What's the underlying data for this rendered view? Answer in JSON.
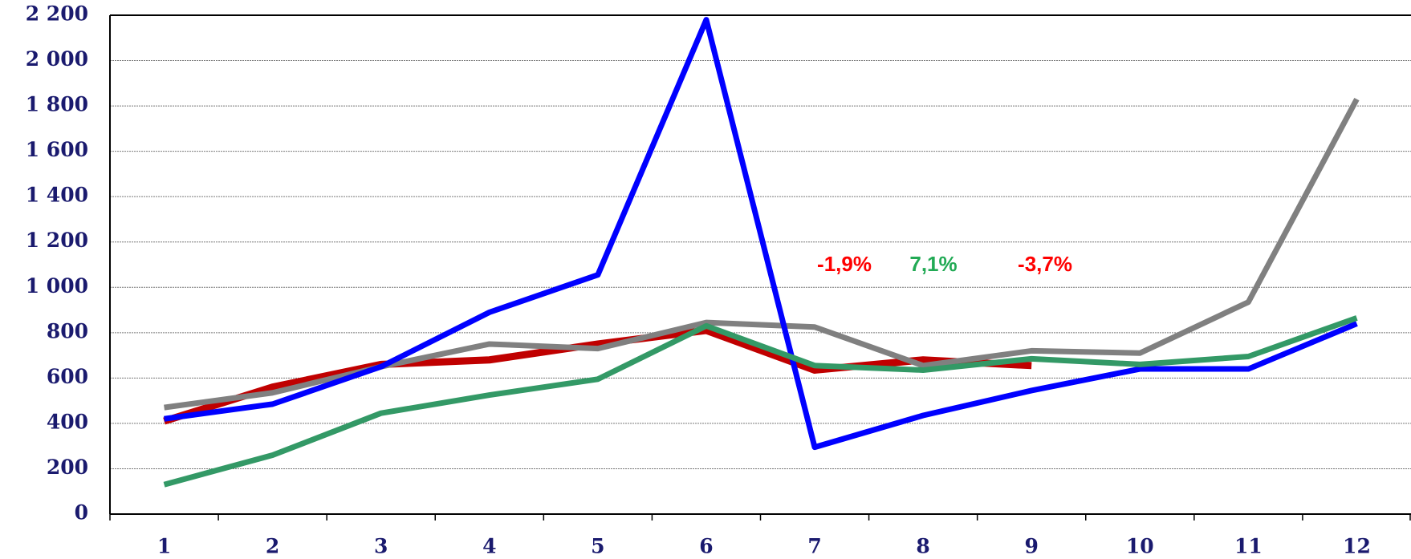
{
  "chart_data": {
    "type": "line",
    "categories": [
      "1",
      "2",
      "3",
      "4",
      "5",
      "6",
      "7",
      "8",
      "9",
      "10",
      "11",
      "12"
    ],
    "series": [
      {
        "color": "#c00000",
        "values": [
          410,
          560,
          660,
          680,
          750,
          810,
          635,
          680,
          655,
          null,
          null,
          null
        ]
      },
      {
        "color": "#808080",
        "values": [
          470,
          535,
          650,
          750,
          730,
          845,
          825,
          655,
          720,
          710,
          935,
          1830
        ]
      },
      {
        "color": "#0000ff",
        "values": [
          420,
          485,
          650,
          890,
          1055,
          2180,
          295,
          435,
          545,
          640,
          640,
          840
        ]
      },
      {
        "color": "#339966",
        "values": [
          130,
          260,
          445,
          525,
          595,
          830,
          655,
          635,
          685,
          660,
          695,
          865
        ]
      }
    ],
    "ylim": [
      0,
      2200
    ],
    "yticks": [
      0,
      200,
      400,
      600,
      800,
      {
        "value": 1000,
        "label": "1 000"
      },
      {
        "value": 1200,
        "label": "1 200"
      },
      {
        "value": 1400,
        "label": "1 400"
      },
      {
        "value": 1600,
        "label": "1 600"
      },
      {
        "value": 1800,
        "label": "1 800"
      },
      {
        "value": 2000,
        "label": "2 000"
      },
      {
        "value": 2200,
        "label": "2 200"
      }
    ],
    "grid": true,
    "annotations": [
      {
        "text": "-1,9%",
        "color": "#ff0000"
      },
      {
        "text": "7,1%",
        "color": "#22aa55"
      },
      {
        "text": "-3,7%",
        "color": "#ff0000"
      }
    ]
  }
}
